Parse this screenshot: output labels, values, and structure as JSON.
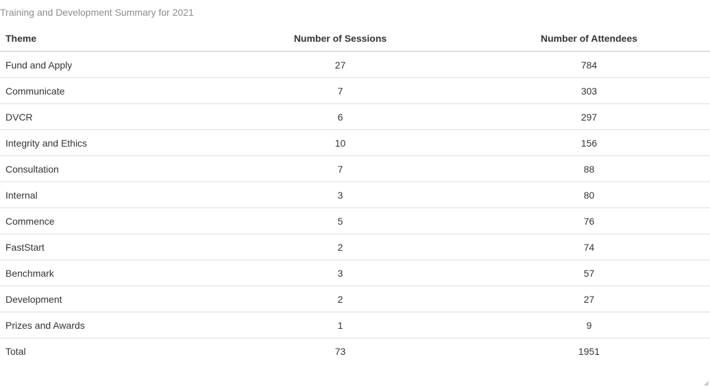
{
  "caption": "Training and Development Summary for 2021",
  "table": {
    "headers": {
      "theme": "Theme",
      "sessions": "Number of Sessions",
      "attendees": "Number of Attendees"
    },
    "rows": [
      {
        "theme": "Fund and Apply",
        "sessions": "27",
        "attendees": "784"
      },
      {
        "theme": "Communicate",
        "sessions": "7",
        "attendees": "303"
      },
      {
        "theme": "DVCR",
        "sessions": "6",
        "attendees": "297"
      },
      {
        "theme": "Integrity and Ethics",
        "sessions": "10",
        "attendees": "156"
      },
      {
        "theme": "Consultation",
        "sessions": "7",
        "attendees": "88"
      },
      {
        "theme": "Internal",
        "sessions": "3",
        "attendees": "80"
      },
      {
        "theme": "Commence",
        "sessions": "5",
        "attendees": "76"
      },
      {
        "theme": "FastStart",
        "sessions": "2",
        "attendees": "74"
      },
      {
        "theme": "Benchmark",
        "sessions": "3",
        "attendees": "57"
      },
      {
        "theme": "Development",
        "sessions": "2",
        "attendees": "27"
      },
      {
        "theme": "Prizes and Awards",
        "sessions": "1",
        "attendees": "9"
      },
      {
        "theme": "Total",
        "sessions": "73",
        "attendees": "1951"
      }
    ]
  },
  "colors": {
    "caption_text": "#8c8c8c",
    "body_text": "#333333",
    "row_border": "#dddddd"
  },
  "icons": {
    "resize_grip": "resize-grip-icon"
  }
}
